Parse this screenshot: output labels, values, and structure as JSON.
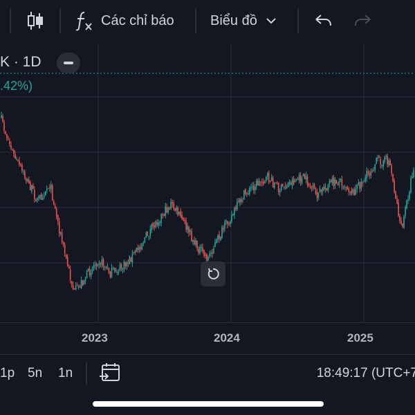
{
  "toolbar": {
    "indicators_label": "Các chỉ báo",
    "chart_type_label": "Biểu đồ",
    "icons": [
      "candlestick-icon",
      "function-icon",
      "chevron-down-icon",
      "undo-icon",
      "redo-icon"
    ]
  },
  "legend": {
    "symbol_interval": "K · 1D",
    "change": ".42%)"
  },
  "time_axis": {
    "labels": [
      "2023",
      "2024",
      "2025"
    ]
  },
  "bottom_bar": {
    "ranges": [
      "1p",
      "5n",
      "1n"
    ],
    "clock": "18:49:17 (UTC+7"
  },
  "colors": {
    "background": "#131722",
    "up": "#26a69a",
    "down": "#ef5350",
    "grid": "#2a2e39",
    "text": "#d1d4dc"
  },
  "chart_data": {
    "type": "candlestick",
    "x_labels": [
      "2023",
      "2024",
      "2025"
    ],
    "series_shape": [
      {
        "x": "2022-05",
        "y": 1.0
      },
      {
        "x": "2022-06",
        "y": 0.88
      },
      {
        "x": "2022-07",
        "y": 0.8
      },
      {
        "x": "2022-08",
        "y": 0.72
      },
      {
        "x": "2022-09",
        "y": 0.78
      },
      {
        "x": "2022-10",
        "y": 0.58
      },
      {
        "x": "2022-11",
        "y": 0.4
      },
      {
        "x": "2022-12",
        "y": 0.46
      },
      {
        "x": "2023-01",
        "y": 0.52
      },
      {
        "x": "2023-02",
        "y": 0.47
      },
      {
        "x": "2023-03",
        "y": 0.49
      },
      {
        "x": "2023-04",
        "y": 0.54
      },
      {
        "x": "2023-05",
        "y": 0.6
      },
      {
        "x": "2023-06",
        "y": 0.66
      },
      {
        "x": "2023-07",
        "y": 0.71
      },
      {
        "x": "2023-08",
        "y": 0.65
      },
      {
        "x": "2023-09",
        "y": 0.57
      },
      {
        "x": "2023-10",
        "y": 0.52
      },
      {
        "x": "2023-11",
        "y": 0.6
      },
      {
        "x": "2023-12",
        "y": 0.67
      },
      {
        "x": "2024-01",
        "y": 0.74
      },
      {
        "x": "2024-02",
        "y": 0.78
      },
      {
        "x": "2024-03",
        "y": 0.8
      },
      {
        "x": "2024-04",
        "y": 0.76
      },
      {
        "x": "2024-05",
        "y": 0.79
      },
      {
        "x": "2024-06",
        "y": 0.8
      },
      {
        "x": "2024-07",
        "y": 0.74
      },
      {
        "x": "2024-08",
        "y": 0.78
      },
      {
        "x": "2024-09",
        "y": 0.79
      },
      {
        "x": "2024-10",
        "y": 0.75
      },
      {
        "x": "2024-11",
        "y": 0.8
      },
      {
        "x": "2024-12",
        "y": 0.86
      },
      {
        "x": "2025-01",
        "y": 0.86
      },
      {
        "x": "2025-02",
        "y": 0.62
      },
      {
        "x": "2025-03",
        "y": 0.84
      }
    ]
  }
}
